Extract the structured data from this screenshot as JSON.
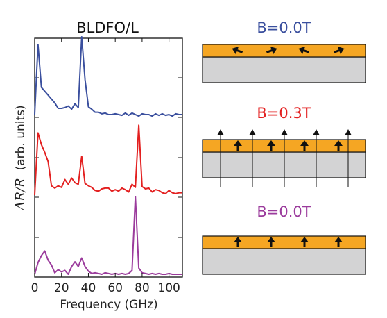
{
  "chart_data": {
    "type": "line",
    "title": "BLDFO/L",
    "xlabel": "Frequency (GHz)",
    "ylabel_math": "ΔR/R",
    "ylabel_units": "(arb. units)",
    "xlim": [
      0,
      110
    ],
    "xticks": [
      "0",
      "20",
      "40",
      "60",
      "80",
      "100"
    ],
    "series": [
      {
        "color": "#3a4f9e",
        "x": [
          0,
          2.5,
          5,
          7.5,
          10,
          12.5,
          15,
          17.5,
          20,
          22.5,
          25,
          27.5,
          30,
          32.5,
          35,
          37.5,
          40,
          42.5,
          45,
          47.5,
          50,
          52.5,
          55,
          57.5,
          60,
          62.5,
          65,
          67.5,
          70,
          72.5,
          75,
          77.5,
          80,
          82.5,
          85,
          87.5,
          90,
          92.5,
          95,
          97.5,
          100,
          102.5,
          105,
          107.5,
          110
        ],
        "y": [
          0.0,
          0.9,
          0.35,
          0.3,
          0.25,
          0.2,
          0.15,
          0.08,
          0.08,
          0.09,
          0.11,
          0.07,
          0.14,
          0.09,
          1.0,
          0.45,
          0.1,
          0.07,
          0.03,
          0.03,
          0.01,
          0.02,
          0.0,
          0.0,
          0.01,
          0.0,
          -0.01,
          0.02,
          -0.01,
          0.02,
          0.0,
          -0.02,
          0.01,
          0.0,
          0.0,
          -0.02,
          0.01,
          -0.01,
          0.01,
          -0.01,
          0.0,
          -0.02,
          0.01,
          0.0,
          0.0
        ]
      },
      {
        "color": "#e32020",
        "x": [
          0,
          2.5,
          5,
          7.5,
          10,
          12.5,
          15,
          17.5,
          20,
          22.5,
          25,
          27.5,
          30,
          32.5,
          35,
          37.5,
          40,
          42.5,
          45,
          47.5,
          50,
          52.5,
          55,
          57.5,
          60,
          62.5,
          65,
          67.5,
          70,
          72.5,
          75,
          77.5,
          80,
          82.5,
          85,
          87.5,
          90,
          92.5,
          95,
          97.5,
          100,
          102.5,
          105,
          107.5,
          110
        ],
        "y": [
          0.0,
          0.8,
          0.65,
          0.55,
          0.43,
          0.12,
          0.09,
          0.12,
          0.1,
          0.2,
          0.14,
          0.22,
          0.16,
          0.14,
          0.5,
          0.15,
          0.12,
          0.1,
          0.06,
          0.05,
          0.08,
          0.09,
          0.09,
          0.05,
          0.07,
          0.05,
          0.09,
          0.07,
          0.04,
          0.14,
          0.1,
          0.9,
          0.11,
          0.08,
          0.09,
          0.04,
          0.07,
          0.06,
          0.03,
          0.02,
          0.06,
          0.03,
          0.02,
          0.03,
          0.03
        ]
      },
      {
        "color": "#9b3b9c",
        "x": [
          0,
          2.5,
          5,
          7.5,
          10,
          12.5,
          15,
          17.5,
          20,
          22.5,
          25,
          27.5,
          30,
          32.5,
          35,
          37.5,
          40,
          42.5,
          45,
          47.5,
          50,
          52.5,
          55,
          57.5,
          60,
          62.5,
          65,
          67.5,
          70,
          72.5,
          75,
          77.5,
          80,
          82.5,
          85,
          87.5,
          90,
          92.5,
          95,
          97.5,
          100,
          102.5,
          105,
          107.5,
          110
        ],
        "y": [
          0.0,
          0.15,
          0.24,
          0.3,
          0.18,
          0.12,
          0.02,
          0.06,
          0.03,
          0.05,
          0.0,
          0.1,
          0.16,
          0.1,
          0.21,
          0.1,
          0.04,
          0.01,
          0.02,
          0.01,
          0.0,
          0.02,
          0.01,
          0.0,
          0.01,
          0.0,
          0.01,
          0.0,
          0.01,
          0.05,
          1.0,
          0.08,
          0.02,
          0.01,
          0.0,
          0.01,
          0.0,
          0.01,
          0.0,
          0.0,
          0.01,
          0.0,
          0.0,
          0.0,
          0.0
        ]
      }
    ]
  },
  "diagrams": [
    {
      "label": "B=0.0T",
      "color": "#3a4f9e",
      "arrows": "in-plane"
    },
    {
      "label": "B=0.3T",
      "color": "#e32020",
      "arrows": "out-of-plane",
      "field": true
    },
    {
      "label": "B=0.0T",
      "color": "#9b3b9c",
      "arrows": "out-of-plane"
    }
  ],
  "colors": {
    "film": "#f5a623",
    "substrate": "#d3d3d4"
  }
}
